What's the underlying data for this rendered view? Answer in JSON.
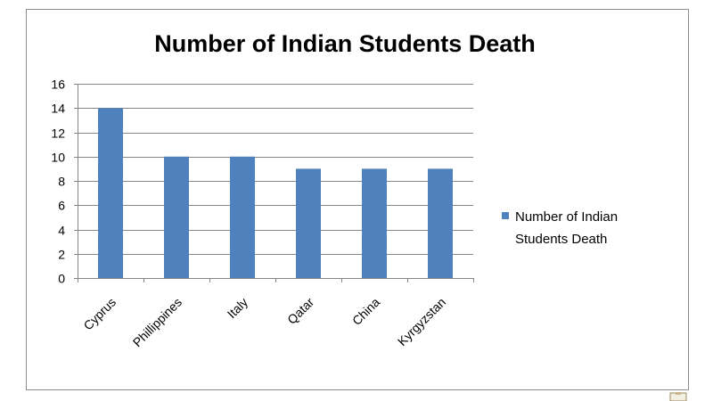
{
  "chart_data": {
    "type": "bar",
    "title": "Number of  Indian Students Death",
    "categories": [
      "Cyprus",
      "Phillippines",
      "Italy",
      "Qatar",
      "China",
      "Kyrgyzstan"
    ],
    "series": [
      {
        "name": "Number of  Indian Students Death",
        "values": [
          14,
          10,
          10,
          9,
          9,
          9
        ],
        "color": "#4f81bd"
      }
    ],
    "xlabel": "",
    "ylabel": "",
    "ylim": [
      0,
      16
    ],
    "yticks": [
      0,
      2,
      4,
      6,
      8,
      10,
      12,
      14,
      16
    ],
    "grid": true,
    "legend_position": "right",
    "colors": {
      "bar": "#4f81bd",
      "grid": "#868686",
      "frame": "#8c8c8c"
    }
  },
  "icons": {
    "corner": "clipboard-icon"
  }
}
